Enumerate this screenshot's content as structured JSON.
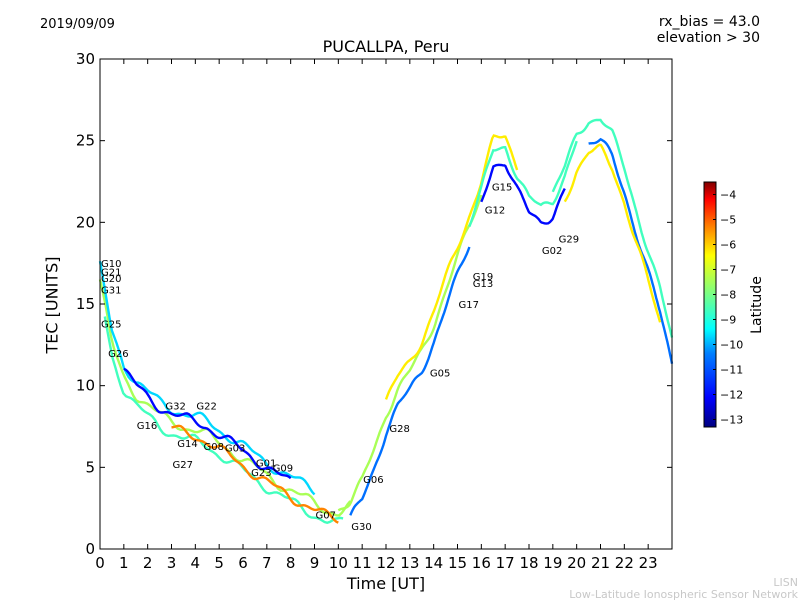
{
  "header": {
    "date": "2019/09/09",
    "rx_bias": "rx_bias = 43.0",
    "elevation": "elevation > 30"
  },
  "footer": {
    "credit_short": "LISN",
    "credit_long": "Low-Latitude Ionospheric Sensor Network"
  },
  "colorbar": {
    "label": "Latitude",
    "range": [
      -13.3,
      -3.5
    ],
    "ticks": [
      -4,
      -5,
      -6,
      -7,
      -8,
      -9,
      -10,
      -11,
      -12,
      -13
    ],
    "colormap": [
      "#00007f",
      "#0000ff",
      "#007fff",
      "#00ffff",
      "#7fff7f",
      "#ffff00",
      "#ff7f00",
      "#ff0000",
      "#7f0000"
    ]
  },
  "chart_data": {
    "type": "line",
    "title": "PUCALLPA, Peru",
    "xlabel": "Time [UT]",
    "ylabel": "TEC [UNITS]",
    "xlim": [
      0,
      24
    ],
    "ylim": [
      0,
      30
    ],
    "xticks": [
      0,
      1,
      2,
      3,
      4,
      5,
      6,
      7,
      8,
      9,
      10,
      11,
      12,
      13,
      14,
      15,
      16,
      17,
      18,
      19,
      20,
      21,
      22,
      23
    ],
    "yticks": [
      0,
      5,
      10,
      15,
      20,
      25,
      30
    ],
    "grid": false,
    "envelope": {
      "x": [
        0,
        0.5,
        1,
        1.5,
        2,
        2.5,
        3,
        3.5,
        4,
        4.5,
        5,
        5.5,
        6,
        6.5,
        7,
        7.5,
        8,
        8.5,
        9,
        9.5,
        10,
        10.5,
        11,
        11.5,
        12,
        12.5,
        13,
        13.5,
        14,
        14.5,
        15,
        15.5,
        16,
        16.5,
        17,
        17.5,
        18,
        18.5,
        19,
        19.5,
        20,
        20.5,
        21,
        21.5,
        22,
        22.5,
        23,
        23.5,
        24
      ],
      "y": [
        16.5,
        12.5,
        10.5,
        9.5,
        8.8,
        8.2,
        7.8,
        7.5,
        7.3,
        7.0,
        6.5,
        6.0,
        5.5,
        5.0,
        4.5,
        4.0,
        3.6,
        3.2,
        2.8,
        2.4,
        2.2,
        2.6,
        3.8,
        5.8,
        8.0,
        9.5,
        10.5,
        11.8,
        13.5,
        15.5,
        17.5,
        19.5,
        21.5,
        24.0,
        24.3,
        22.5,
        21.0,
        20.5,
        21.0,
        22.5,
        24.5,
        25.5,
        25.6,
        24.5,
        22.5,
        20.0,
        17.5,
        15.0,
        12.0
      ]
    },
    "satellites": [
      {
        "name": "G10",
        "x": 0.0,
        "y": 17.5,
        "lat": -8
      },
      {
        "name": "G21",
        "x": 0.0,
        "y": 17.0,
        "lat": -9
      },
      {
        "name": "G20",
        "x": 0.0,
        "y": 16.6,
        "lat": -10
      },
      {
        "name": "G31",
        "x": 0.0,
        "y": 15.9,
        "lat": -9
      },
      {
        "name": "G25",
        "x": 0.0,
        "y": 13.8,
        "lat": -8
      },
      {
        "name": "G26",
        "x": 0.3,
        "y": 12.0,
        "lat": -12
      },
      {
        "name": "G16",
        "x": 1.5,
        "y": 7.6,
        "lat": -11
      },
      {
        "name": "G32",
        "x": 2.7,
        "y": 8.8,
        "lat": -5
      },
      {
        "name": "G22",
        "x": 4.0,
        "y": 8.8,
        "lat": -7
      },
      {
        "name": "G14",
        "x": 3.2,
        "y": 6.5,
        "lat": -9
      },
      {
        "name": "G08",
        "x": 4.3,
        "y": 6.3,
        "lat": -10
      },
      {
        "name": "G03",
        "x": 5.2,
        "y": 6.2,
        "lat": -8
      },
      {
        "name": "G27",
        "x": 3.0,
        "y": 5.2,
        "lat": -13
      },
      {
        "name": "G01",
        "x": 6.5,
        "y": 5.3,
        "lat": -8
      },
      {
        "name": "G09",
        "x": 7.2,
        "y": 5.0,
        "lat": -9
      },
      {
        "name": "G23",
        "x": 6.3,
        "y": 4.7,
        "lat": -11
      },
      {
        "name": "G07",
        "x": 9.0,
        "y": 2.1,
        "lat": -4
      },
      {
        "name": "G30",
        "x": 10.5,
        "y": 1.4,
        "lat": -6
      },
      {
        "name": "G06",
        "x": 11.0,
        "y": 4.3,
        "lat": -12
      },
      {
        "name": "G28",
        "x": 12.1,
        "y": 7.4,
        "lat": -5
      },
      {
        "name": "G05",
        "x": 13.8,
        "y": 10.8,
        "lat": -12
      },
      {
        "name": "G17",
        "x": 15.0,
        "y": 15.0,
        "lat": -4
      },
      {
        "name": "G19",
        "x": 15.6,
        "y": 16.7,
        "lat": -11
      },
      {
        "name": "G13",
        "x": 15.6,
        "y": 16.3,
        "lat": -12
      },
      {
        "name": "G12",
        "x": 16.1,
        "y": 20.8,
        "lat": -9
      },
      {
        "name": "G15",
        "x": 16.4,
        "y": 22.2,
        "lat": -12
      },
      {
        "name": "G02",
        "x": 18.5,
        "y": 18.3,
        "lat": -13
      },
      {
        "name": "G29",
        "x": 19.2,
        "y": 19.0,
        "lat": -5
      }
    ]
  }
}
